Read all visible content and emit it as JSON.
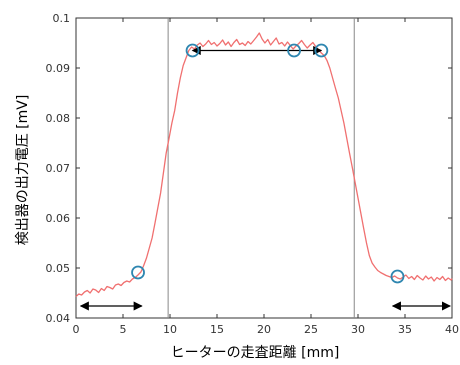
{
  "chart_data": {
    "type": "line",
    "title": "",
    "xlabel": "ヒーターの走査距離 [mm]",
    "ylabel": "検出器の出力電圧 [mV]",
    "xlim": [
      0,
      40
    ],
    "ylim": [
      0.04,
      0.1
    ],
    "x_ticks": [
      0,
      5,
      10,
      15,
      20,
      25,
      30,
      35,
      40
    ],
    "y_ticks": [
      0.04,
      0.05,
      0.06,
      0.07,
      0.08,
      0.09,
      0.1
    ],
    "x_tick_labels": [
      "0",
      "5",
      "10",
      "15",
      "20",
      "25",
      "30",
      "35",
      "40"
    ],
    "y_tick_labels": [
      "0.04",
      "0.05",
      "0.06",
      "0.07",
      "0.08",
      "0.09",
      "0.1"
    ],
    "grid": false,
    "series": [
      {
        "color": "#f07070",
        "x": [
          0,
          0.3,
          0.6,
          0.9,
          1.2,
          1.5,
          1.8,
          2.1,
          2.4,
          2.7,
          3.0,
          3.3,
          3.6,
          3.9,
          4.2,
          4.5,
          4.8,
          5.1,
          5.4,
          5.7,
          6.0,
          6.3,
          6.6,
          6.9,
          7.2,
          7.5,
          7.8,
          8.1,
          8.4,
          8.7,
          9.0,
          9.3,
          9.6,
          9.9,
          10.2,
          10.5,
          10.8,
          11.1,
          11.4,
          11.7,
          12.0,
          12.3,
          12.6,
          12.9,
          13.2,
          13.5,
          13.8,
          14.1,
          14.4,
          14.7,
          15.0,
          15.3,
          15.6,
          15.9,
          16.2,
          16.5,
          16.8,
          17.1,
          17.4,
          17.7,
          18.0,
          18.3,
          18.6,
          18.9,
          19.2,
          19.5,
          19.8,
          20.1,
          20.4,
          20.7,
          21.0,
          21.3,
          21.6,
          21.9,
          22.2,
          22.5,
          22.8,
          23.1,
          23.4,
          23.7,
          24.0,
          24.3,
          24.6,
          24.9,
          25.2,
          25.5,
          25.8,
          26.1,
          26.4,
          26.7,
          27.0,
          27.3,
          27.6,
          27.9,
          28.2,
          28.5,
          28.8,
          29.1,
          29.4,
          29.7,
          30.0,
          30.3,
          30.6,
          30.9,
          31.2,
          31.5,
          31.8,
          32.1,
          32.4,
          32.7,
          33.0,
          33.3,
          33.6,
          33.9,
          34.2,
          34.5,
          34.8,
          35.1,
          35.4,
          35.7,
          36.0,
          36.3,
          36.6,
          36.9,
          37.2,
          37.5,
          37.8,
          38.1,
          38.4,
          38.7,
          39.0,
          39.3,
          39.6,
          39.9,
          40.0
        ],
        "y": [
          0.0443,
          0.0448,
          0.0446,
          0.0452,
          0.0455,
          0.045,
          0.0458,
          0.0456,
          0.0451,
          0.0459,
          0.0455,
          0.0463,
          0.0461,
          0.0458,
          0.0466,
          0.0468,
          0.0465,
          0.0471,
          0.0474,
          0.0472,
          0.0478,
          0.0481,
          0.0486,
          0.0492,
          0.0505,
          0.052,
          0.054,
          0.056,
          0.059,
          0.062,
          0.065,
          0.069,
          0.073,
          0.076,
          0.079,
          0.0815,
          0.085,
          0.088,
          0.0905,
          0.092,
          0.0935,
          0.0942,
          0.0938,
          0.0946,
          0.095,
          0.0943,
          0.0948,
          0.0955,
          0.0947,
          0.0951,
          0.0944,
          0.0949,
          0.0956,
          0.0946,
          0.0952,
          0.0943,
          0.0951,
          0.0957,
          0.0947,
          0.095,
          0.0945,
          0.0953,
          0.0948,
          0.0955,
          0.0962,
          0.097,
          0.0958,
          0.095,
          0.0957,
          0.0946,
          0.0953,
          0.096,
          0.0948,
          0.0951,
          0.0944,
          0.0952,
          0.0945,
          0.0938,
          0.0944,
          0.0949,
          0.0955,
          0.0947,
          0.094,
          0.0946,
          0.0951,
          0.0943,
          0.0936,
          0.093,
          0.0925,
          0.0915,
          0.09,
          0.088,
          0.086,
          0.084,
          0.0815,
          0.079,
          0.076,
          0.073,
          0.07,
          0.067,
          0.064,
          0.061,
          0.058,
          0.055,
          0.0525,
          0.051,
          0.0502,
          0.0495,
          0.0491,
          0.0488,
          0.0485,
          0.0483,
          0.0481,
          0.0484,
          0.048,
          0.0478,
          0.0482,
          0.0486,
          0.0479,
          0.0483,
          0.0477,
          0.0485,
          0.048,
          0.0476,
          0.0484,
          0.0478,
          0.0482,
          0.0474,
          0.0481,
          0.0477,
          0.0483,
          0.0475,
          0.048,
          0.0476,
          0.0479
        ]
      }
    ],
    "vertical_lines": [
      {
        "x": 9.8,
        "color": "#888888"
      },
      {
        "x": 29.6,
        "color": "#888888"
      }
    ],
    "markers": [
      {
        "x": 6.6,
        "y": 0.0491,
        "shape": "circle",
        "color": "#2e86b0"
      },
      {
        "x": 12.4,
        "y": 0.0935,
        "shape": "circle",
        "color": "#2e86b0"
      },
      {
        "x": 23.2,
        "y": 0.0935,
        "shape": "circle",
        "color": "#2e86b0"
      },
      {
        "x": 26.1,
        "y": 0.0935,
        "shape": "circle",
        "color": "#2e86b0"
      },
      {
        "x": 34.2,
        "y": 0.0483,
        "shape": "circle",
        "color": "#2e86b0"
      }
    ],
    "arrows": [
      {
        "x1": 0.5,
        "x2": 7.0,
        "y": 0.0424,
        "style": "double",
        "color": "#000000"
      },
      {
        "x1": 12.4,
        "x2": 26.1,
        "y": 0.0935,
        "style": "double",
        "color": "#000000"
      },
      {
        "x1": 33.7,
        "x2": 39.8,
        "y": 0.0424,
        "style": "double",
        "color": "#000000"
      }
    ]
  }
}
